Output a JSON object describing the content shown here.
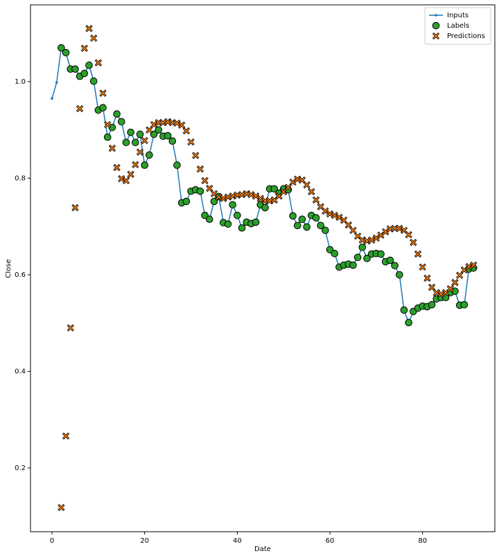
{
  "chart_data": {
    "type": "line",
    "xlabel": "Date",
    "ylabel": "Close",
    "x": [
      0,
      1,
      2,
      3,
      4,
      5,
      6,
      7,
      8,
      9,
      10,
      11,
      12,
      13,
      14,
      15,
      16,
      17,
      18,
      19,
      20,
      21,
      22,
      23,
      24,
      25,
      26,
      27,
      28,
      29,
      30,
      31,
      32,
      33,
      34,
      35,
      36,
      37,
      38,
      39,
      40,
      41,
      42,
      43,
      44,
      45,
      46,
      47,
      48,
      49,
      50,
      51,
      52,
      53,
      54,
      55,
      56,
      57,
      58,
      59,
      60,
      61,
      62,
      63,
      64,
      65,
      66,
      67,
      68,
      69,
      70,
      71,
      72,
      73,
      74,
      75,
      76,
      77,
      78,
      79,
      80,
      81,
      82,
      83,
      84,
      85,
      86,
      87,
      88,
      89,
      90,
      91
    ],
    "series": [
      {
        "name": "Inputs",
        "color": "#1f77b4",
        "marker": "dot",
        "values": [
          0.965,
          0.998,
          1.07,
          1.06,
          1.026,
          1.026,
          1.011,
          1.017,
          1.034,
          1.001,
          0.941,
          0.946,
          0.885,
          0.905,
          0.933,
          0.917,
          0.874,
          0.895,
          0.874,
          0.891,
          0.827,
          0.848,
          0.891,
          0.9,
          0.887,
          0.888,
          0.877,
          0.827,
          0.749,
          0.752,
          0.773,
          0.776,
          0.773,
          0.723,
          0.715,
          0.752,
          0.762,
          0.708,
          0.705,
          0.745,
          0.723,
          0.697,
          0.709,
          0.706,
          0.709,
          0.745,
          0.739,
          0.778,
          0.778,
          0.769,
          0.778,
          0.776,
          0.722,
          0.702,
          0.715,
          0.699,
          0.723,
          0.718,
          0.702,
          0.692,
          0.652,
          0.644,
          0.616,
          0.62,
          0.622,
          0.62,
          0.636,
          0.657,
          0.634,
          0.643,
          0.644,
          0.643,
          0.627,
          0.63,
          0.619,
          0.6,
          0.527,
          0.501,
          0.524,
          0.531,
          0.535,
          0.534,
          0.538,
          0.55,
          0.553,
          0.553,
          0.563,
          0.566,
          0.537,
          0.538,
          0.612,
          0.614
        ]
      },
      {
        "name": "Labels",
        "color": "#2ca02c",
        "marker": "circle",
        "values": [
          null,
          null,
          1.07,
          1.06,
          1.026,
          1.026,
          1.011,
          1.017,
          1.034,
          1.001,
          0.941,
          0.946,
          0.885,
          0.905,
          0.933,
          0.917,
          0.874,
          0.895,
          0.874,
          0.891,
          0.827,
          0.848,
          0.891,
          0.9,
          0.887,
          0.888,
          0.877,
          0.827,
          0.749,
          0.752,
          0.773,
          0.776,
          0.773,
          0.723,
          0.715,
          0.752,
          0.762,
          0.708,
          0.705,
          0.745,
          0.723,
          0.697,
          0.709,
          0.706,
          0.709,
          0.745,
          0.739,
          0.778,
          0.778,
          0.769,
          0.778,
          0.776,
          0.722,
          0.702,
          0.715,
          0.699,
          0.723,
          0.718,
          0.702,
          0.692,
          0.652,
          0.644,
          0.616,
          0.62,
          0.622,
          0.62,
          0.636,
          0.657,
          0.634,
          0.643,
          0.644,
          0.643,
          0.627,
          0.63,
          0.619,
          0.6,
          0.527,
          0.501,
          0.524,
          0.531,
          0.535,
          0.534,
          0.538,
          0.55,
          0.553,
          0.553,
          0.563,
          0.566,
          0.537,
          0.538,
          0.612,
          0.614
        ]
      },
      {
        "name": "Predictions",
        "color": "#ff7f0e",
        "marker": "x",
        "values": [
          null,
          null,
          0.118,
          0.266,
          0.49,
          0.739,
          0.944,
          1.069,
          1.11,
          1.09,
          1.039,
          0.976,
          0.911,
          0.862,
          0.822,
          0.799,
          0.795,
          0.808,
          0.828,
          0.854,
          0.878,
          0.9,
          0.911,
          0.915,
          0.915,
          0.917,
          0.915,
          0.914,
          0.91,
          0.898,
          0.875,
          0.847,
          0.819,
          0.795,
          0.779,
          0.768,
          0.761,
          0.758,
          0.761,
          0.763,
          0.765,
          0.766,
          0.768,
          0.766,
          0.763,
          0.758,
          0.753,
          0.753,
          0.755,
          0.763,
          0.772,
          0.781,
          0.792,
          0.798,
          0.796,
          0.786,
          0.772,
          0.755,
          0.741,
          0.732,
          0.726,
          0.723,
          0.719,
          0.713,
          0.703,
          0.692,
          0.68,
          0.672,
          0.67,
          0.672,
          0.676,
          0.682,
          0.689,
          0.695,
          0.696,
          0.696,
          0.692,
          0.683,
          0.667,
          0.643,
          0.616,
          0.593,
          0.574,
          0.563,
          0.56,
          0.563,
          0.571,
          0.584,
          0.599,
          0.61,
          0.617,
          0.62
        ]
      }
    ],
    "xlim": [
      -4.64,
      95.6
    ],
    "ylim": [
      0.068,
      1.159
    ],
    "xticks": [
      0,
      20,
      40,
      60,
      80
    ],
    "yticks": [
      0.2,
      0.4,
      0.6,
      0.8,
      {
        "value": 1,
        "label": "1.0"
      }
    ],
    "legend": "upper right"
  }
}
